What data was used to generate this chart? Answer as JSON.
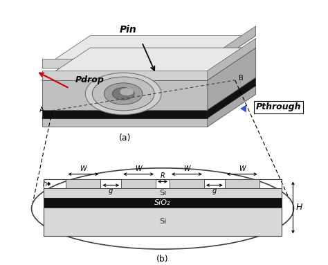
{
  "fig_width": 4.74,
  "fig_height": 3.83,
  "dpi": 100,
  "bg_color": "#ffffff",
  "label_a": "(a)",
  "label_b": "(b)",
  "pin_label": "Pin",
  "pdrop_label": "Pdrop",
  "pthrough_label": "Pthrough",
  "si_label": "Si",
  "sio2_label": "SiO₂",
  "si_bottom_label": "Si",
  "W_label": "W",
  "g_label": "g",
  "R_label": "R",
  "h_label": "h",
  "H_label": "H",
  "c_light": "#e0e0e0",
  "c_mid": "#b8b8b8",
  "c_dark": "#888888",
  "c_darker": "#606060",
  "c_black": "#111111",
  "c_white": "#ffffff",
  "c_blue": "#3355cc",
  "c_red": "#cc0000",
  "c_ridge_top": "#d4d4d4",
  "c_ridge_front": "#b0b0b0",
  "c_ridge_side": "#989898",
  "c_chip_top": "#d8d8d8",
  "c_chip_front": "#c0c0c0",
  "c_chip_side": "#a8a8a8",
  "c_slab_front": "#909090"
}
